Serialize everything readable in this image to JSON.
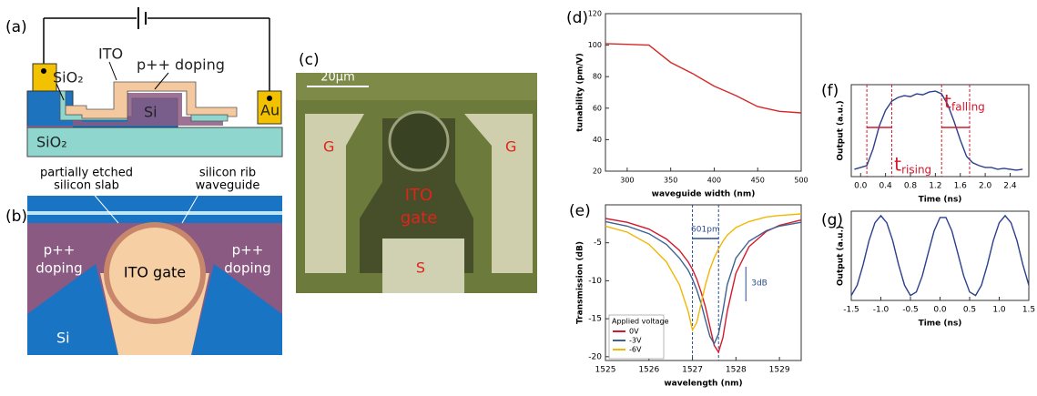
{
  "panel_a": {
    "label": "(a)",
    "ito": "ITO",
    "doping": "p++ doping",
    "sio2_top": "SiO₂",
    "si": "Si",
    "au": "Au",
    "sio2_bottom": "SiO₂"
  },
  "panel_b": {
    "label": "(b)",
    "slab_1": "partially etched",
    "slab_2": "silicon slab",
    "rib_1": "silicon rib",
    "rib_2": "waveguide",
    "left_1": "p++",
    "left_2": "doping",
    "right_1": "p++",
    "right_2": "doping",
    "gate": "ITO gate",
    "si": "Si"
  },
  "panel_c": {
    "label": "(c)",
    "scale": "20μm",
    "g_left": "G",
    "g_right": "G",
    "ito_1": "ITO",
    "ito_2": "gate",
    "s": "S"
  },
  "chart_data": [
    {
      "type": "line",
      "panel_label": "(d)",
      "xlabel": "waveguide width (nm)",
      "ylabel": "tunability (pm/V)",
      "x": [
        275,
        300,
        325,
        350,
        375,
        400,
        425,
        450,
        475,
        500
      ],
      "values": [
        101,
        100.5,
        100,
        89,
        82,
        74,
        68,
        61,
        58,
        57
      ],
      "color": "#d62728",
      "xlim": [
        275,
        500
      ],
      "xticks": [
        300,
        350,
        400,
        450,
        500
      ],
      "ylim": [
        20,
        120
      ],
      "yticks": [
        20,
        40,
        60,
        80,
        100,
        120
      ]
    },
    {
      "type": "line",
      "panel_label": "(e)",
      "xlabel": "wavelength (nm)",
      "ylabel": "Transmission (dB)",
      "x": [
        1525,
        1525.5,
        1526,
        1526.4,
        1526.7,
        1526.9,
        1527,
        1527.1,
        1527.2,
        1527.3,
        1527.4,
        1527.5,
        1527.6,
        1527.7,
        1527.8,
        1528,
        1528.3,
        1528.7,
        1529,
        1529.5
      ],
      "legend_title": "Applied voltage",
      "series": [
        {
          "name": "0V",
          "color": "#d4192c",
          "values": [
            -1.8,
            -2.3,
            -3.2,
            -4.5,
            -6,
            -7.5,
            -8.5,
            -9.8,
            -11.5,
            -13.5,
            -16,
            -18.5,
            -19.4,
            -17.5,
            -14,
            -9,
            -5.5,
            -3.5,
            -2.7,
            -2
          ]
        },
        {
          "name": "-3V",
          "color": "#3d6391",
          "values": [
            -2.2,
            -2.8,
            -3.8,
            -5.2,
            -7,
            -8.6,
            -9.8,
            -11.2,
            -13,
            -15.2,
            -17.3,
            -18.3,
            -17,
            -14,
            -10.5,
            -7,
            -4.8,
            -3.4,
            -2.8,
            -2.3
          ]
        },
        {
          "name": "-6V",
          "color": "#f2b705",
          "values": [
            -2.8,
            -3.6,
            -5.2,
            -7.5,
            -10.5,
            -14,
            -16.5,
            -15.5,
            -13,
            -10.5,
            -8.5,
            -7,
            -5.8,
            -4.8,
            -4,
            -3,
            -2.2,
            -1.6,
            -1.4,
            -1.2
          ]
        }
      ],
      "vlines": [
        1527,
        1527.6
      ],
      "annotations": [
        "601pm",
        "3dB"
      ],
      "xlim": [
        1525,
        1529.5
      ],
      "xticks": [
        1525,
        1526,
        1527,
        1528,
        1529
      ],
      "ylim": [
        -20.5,
        0
      ],
      "yticks": [
        -20,
        -15,
        -10,
        -5
      ]
    },
    {
      "type": "line",
      "panel_label": "(f)",
      "xlabel": "Time (ns)",
      "ylabel": "Output (a.u.)",
      "x": [
        -0.1,
        0,
        0.1,
        0.2,
        0.3,
        0.4,
        0.5,
        0.6,
        0.7,
        0.8,
        0.9,
        1.0,
        1.1,
        1.2,
        1.3,
        1.4,
        1.5,
        1.6,
        1.7,
        1.8,
        1.9,
        2.0,
        2.1,
        2.2,
        2.3,
        2.4,
        2.5,
        2.6
      ],
      "values": [
        0.08,
        0.1,
        0.12,
        0.3,
        0.55,
        0.72,
        0.82,
        0.86,
        0.88,
        0.87,
        0.9,
        0.89,
        0.92,
        0.93,
        0.9,
        0.78,
        0.6,
        0.4,
        0.22,
        0.15,
        0.12,
        0.1,
        0.1,
        0.08,
        0.09,
        0.08,
        0.07,
        0.08
      ],
      "color": "#2b3f8c",
      "vlines": [
        0.1,
        0.5,
        1.3,
        1.75
      ],
      "annotations": [
        {
          "text": "t",
          "sub": "rising"
        },
        {
          "text": "t",
          "sub": "falling"
        }
      ],
      "xlim": [
        -0.15,
        2.7
      ],
      "xticks": [
        {
          "value": 0,
          "label": "0.0"
        },
        0.4,
        0.8,
        1.2,
        1.6,
        {
          "value": 2,
          "label": "2.0"
        },
        2.4
      ],
      "ylim": [
        0,
        1
      ]
    },
    {
      "type": "line",
      "panel_label": "(g)",
      "xlabel": "Time (ns)",
      "ylabel": "Output (a.u.)",
      "x": [
        -1.5,
        -1.4,
        -1.3,
        -1.2,
        -1.1,
        -1.0,
        -0.9,
        -0.8,
        -0.7,
        -0.6,
        -0.5,
        -0.4,
        -0.3,
        -0.2,
        -0.1,
        0,
        0.1,
        0.2,
        0.3,
        0.4,
        0.5,
        0.6,
        0.7,
        0.8,
        0.9,
        1.0,
        1.1,
        1.2,
        1.3,
        1.4,
        1.5
      ],
      "values": [
        0.055,
        0.17,
        0.4,
        0.67,
        0.87,
        0.95,
        0.87,
        0.67,
        0.4,
        0.17,
        0.055,
        0.095,
        0.275,
        0.53,
        0.78,
        0.93,
        0.93,
        0.78,
        0.53,
        0.275,
        0.095,
        0.055,
        0.17,
        0.4,
        0.67,
        0.87,
        0.95,
        0.87,
        0.67,
        0.4,
        0.17
      ],
      "color": "#2b3f8c",
      "xlim": [
        -1.5,
        1.5
      ],
      "xticks": [
        -1.5,
        {
          "value": -1,
          "label": "-1.0"
        },
        -0.5,
        {
          "value": 0,
          "label": "0.0"
        },
        0.5,
        {
          "value": 1,
          "label": "1.0"
        },
        1.5
      ],
      "ylim": [
        0,
        1
      ]
    }
  ]
}
